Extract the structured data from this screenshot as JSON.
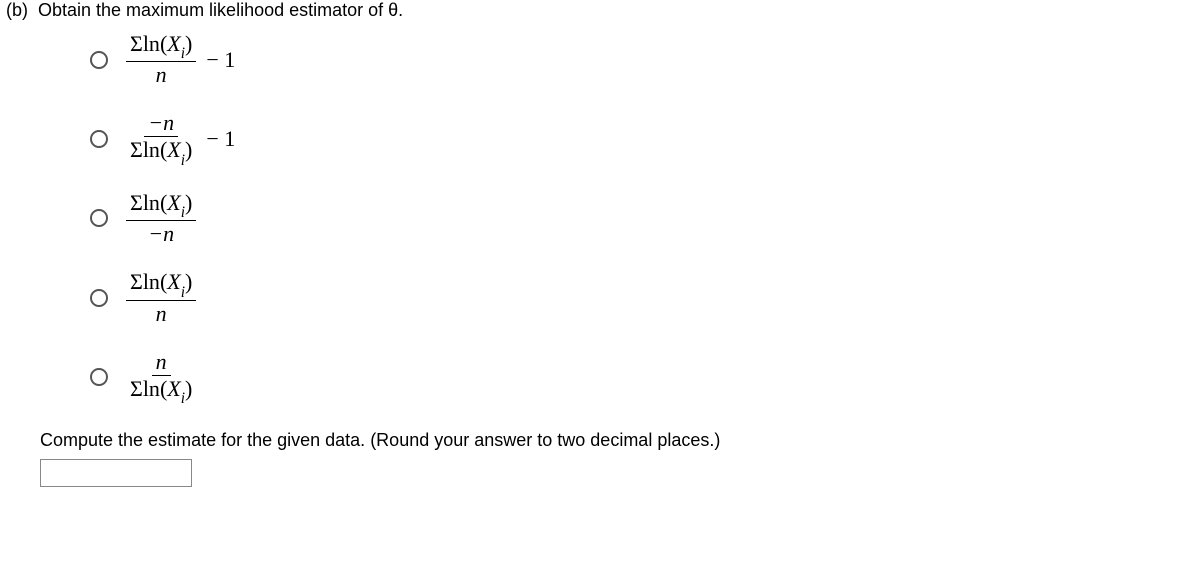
{
  "part_label": "(b)",
  "question": "Obtain the maximum likelihood estimator of θ.",
  "sigma": "Σ",
  "ln": "ln",
  "X": "X",
  "i": "i",
  "n": "n",
  "neg_n": "−n",
  "minus1": " − 1",
  "lp": "(",
  "rp": ")",
  "compute_text": "Compute the estimate for the given data. (Round your answer to two decimal places.)"
}
